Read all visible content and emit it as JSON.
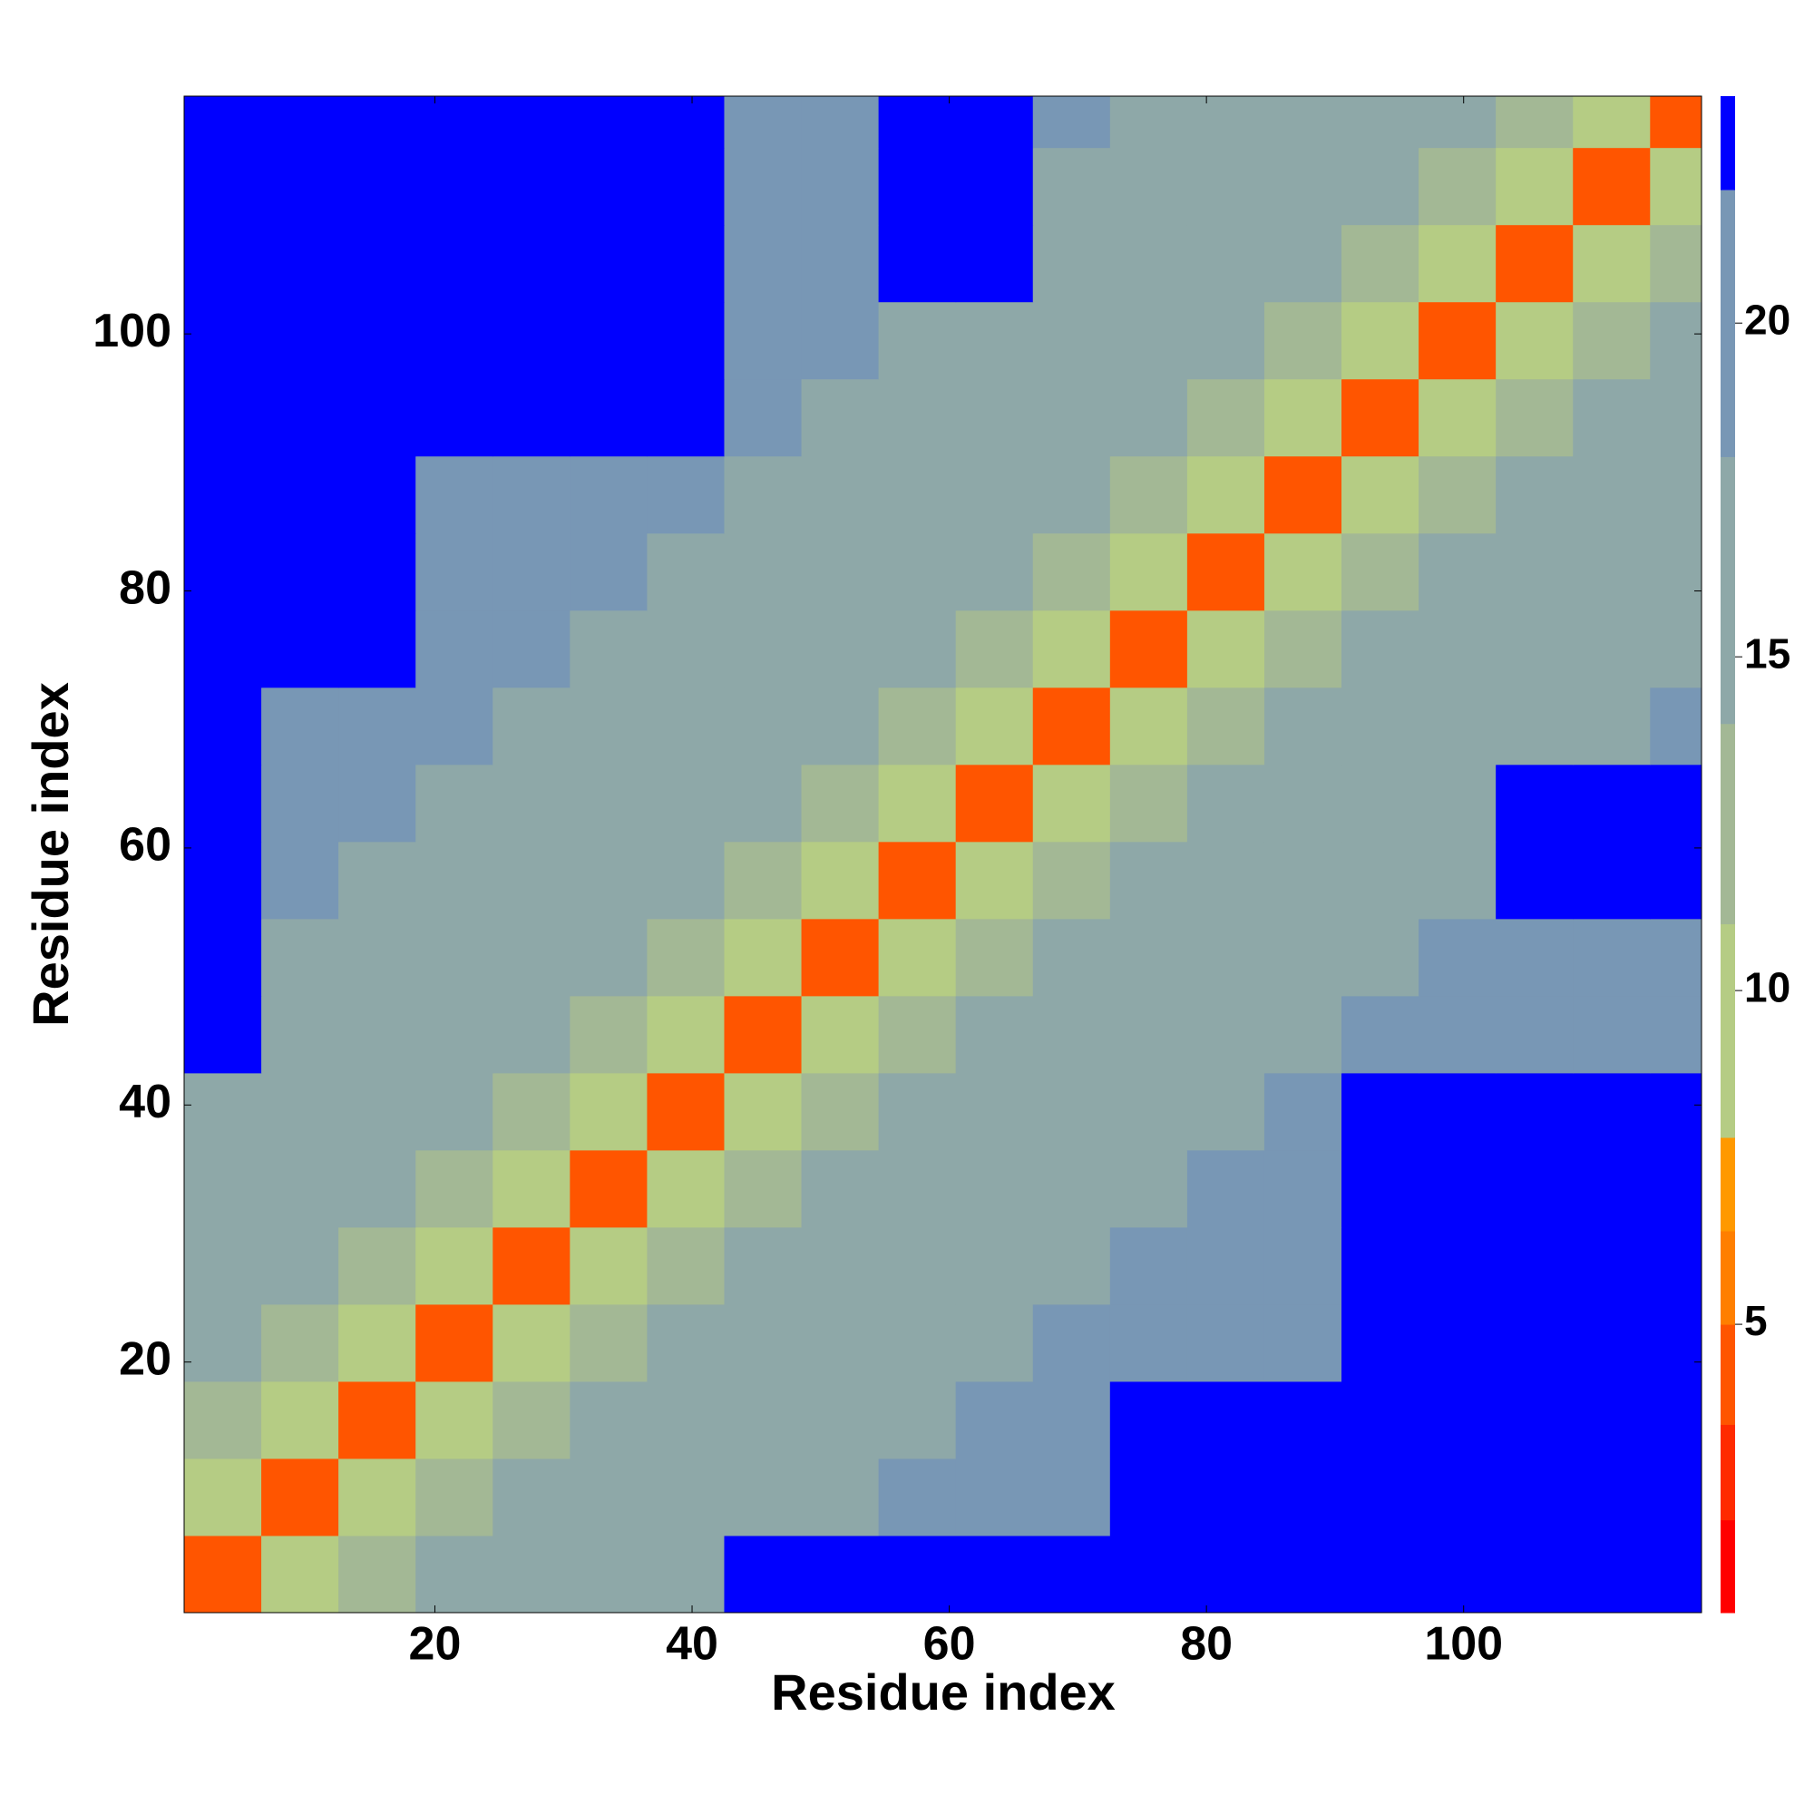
{
  "chart_data": {
    "type": "heatmap",
    "xlabel": "Residue index",
    "ylabel": "Residue index",
    "xbins": [
      0.5,
      6.5,
      12.5,
      18.5,
      24.5,
      30.5,
      36.5,
      42.5,
      48.5,
      54.5,
      60.5,
      66.5,
      72.5,
      78.5,
      84.5,
      90.5,
      96.5,
      102.5,
      108.5,
      114.5,
      118.5
    ],
    "ybins": [
      0.5,
      6.5,
      12.5,
      18.5,
      24.5,
      30.5,
      36.5,
      42.5,
      48.5,
      54.5,
      60.5,
      66.5,
      72.5,
      78.5,
      84.5,
      90.5,
      96.5,
      102.5,
      108.5,
      114.5,
      118.5
    ],
    "values": [
      [
        4,
        10,
        13,
        15,
        16,
        17,
        18,
        24,
        24,
        24,
        24,
        24,
        24,
        24,
        24,
        24,
        24,
        24,
        24,
        24
      ],
      [
        10,
        4,
        10,
        13,
        15,
        16,
        17,
        18,
        18,
        19,
        19,
        20,
        24,
        24,
        24,
        24,
        24,
        24,
        24,
        24
      ],
      [
        13,
        10,
        4,
        10,
        13,
        15,
        16,
        17,
        18,
        18,
        19,
        19,
        24,
        24,
        24,
        24,
        24,
        24,
        24,
        24
      ],
      [
        15,
        13,
        10,
        4,
        10,
        13,
        15,
        16,
        17,
        18,
        18,
        19,
        19,
        20,
        20,
        24,
        24,
        24,
        24,
        24
      ],
      [
        16,
        15,
        13,
        10,
        4,
        10,
        13,
        15,
        16,
        17,
        18,
        18,
        19,
        19,
        20,
        24,
        24,
        24,
        24,
        24
      ],
      [
        17,
        16,
        15,
        13,
        10,
        4,
        10,
        13,
        15,
        16,
        17,
        18,
        18,
        19,
        19,
        24,
        24,
        24,
        24,
        24
      ],
      [
        18,
        17,
        16,
        15,
        13,
        10,
        4,
        10,
        13,
        15,
        16,
        17,
        18,
        18,
        19,
        24,
        24,
        24,
        24,
        24
      ],
      [
        24,
        18,
        17,
        16,
        15,
        13,
        10,
        4,
        10,
        13,
        15,
        16,
        17,
        18,
        18,
        19,
        19,
        20,
        20,
        21
      ],
      [
        24,
        18,
        18,
        17,
        16,
        15,
        13,
        10,
        4,
        10,
        13,
        15,
        16,
        17,
        18,
        18,
        19,
        19,
        20,
        20
      ],
      [
        24,
        19,
        18,
        18,
        17,
        16,
        15,
        13,
        10,
        4,
        10,
        13,
        15,
        16,
        17,
        18,
        18,
        24,
        24,
        24
      ],
      [
        24,
        19,
        19,
        18,
        18,
        17,
        16,
        15,
        13,
        10,
        4,
        10,
        13,
        15,
        16,
        17,
        18,
        24,
        24,
        24
      ],
      [
        24,
        20,
        19,
        19,
        18,
        18,
        17,
        16,
        15,
        13,
        10,
        4,
        10,
        13,
        15,
        16,
        17,
        18,
        18,
        19
      ],
      [
        24,
        24,
        24,
        19,
        19,
        18,
        18,
        17,
        16,
        15,
        13,
        10,
        4,
        10,
        13,
        15,
        16,
        17,
        18,
        18
      ],
      [
        24,
        24,
        24,
        20,
        19,
        19,
        18,
        18,
        17,
        16,
        15,
        13,
        10,
        4,
        10,
        13,
        15,
        16,
        17,
        18
      ],
      [
        24,
        24,
        24,
        20,
        20,
        19,
        19,
        18,
        18,
        17,
        16,
        15,
        13,
        10,
        4,
        10,
        13,
        15,
        16,
        17
      ],
      [
        24,
        24,
        24,
        24,
        24,
        24,
        24,
        19,
        18,
        18,
        17,
        16,
        15,
        13,
        10,
        4,
        10,
        13,
        15,
        16
      ],
      [
        24,
        24,
        24,
        24,
        24,
        24,
        24,
        19,
        19,
        18,
        18,
        17,
        16,
        15,
        13,
        10,
        4,
        10,
        13,
        15
      ],
      [
        24,
        24,
        24,
        24,
        24,
        24,
        24,
        20,
        19,
        24,
        24,
        18,
        17,
        16,
        15,
        13,
        10,
        4,
        10,
        13
      ],
      [
        24,
        24,
        24,
        24,
        24,
        24,
        24,
        20,
        20,
        24,
        24,
        18,
        18,
        17,
        16,
        15,
        13,
        10,
        4,
        10
      ],
      [
        24,
        24,
        24,
        24,
        24,
        24,
        24,
        21,
        20,
        24,
        24,
        19,
        18,
        18,
        17,
        16,
        15,
        13,
        10,
        4
      ]
    ],
    "xlim": [
      0.5,
      118.5
    ],
    "ylim": [
      0.5,
      118.5
    ],
    "xticks": [
      20,
      40,
      60,
      80,
      100
    ],
    "yticks": [
      20,
      40,
      60,
      80,
      100
    ],
    "colorbar": {
      "bounds": [
        0.68,
        2.07,
        3.5,
        5,
        6.4,
        7.8,
        11,
        14,
        18,
        22,
        23.4
      ],
      "colors": [
        "#ff0000",
        "#ff2a00",
        "#ff5500",
        "#ff7f00",
        "#ff9900",
        "#b5cc84",
        "#a3b895",
        "#8ea8a8",
        "#7897b5",
        "#0000ff"
      ],
      "ticks": [
        5,
        10,
        15,
        20
      ]
    }
  }
}
